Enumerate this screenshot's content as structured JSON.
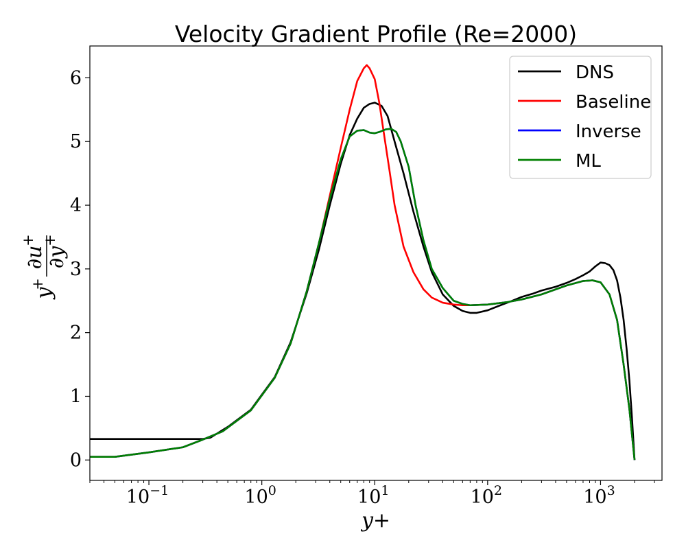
{
  "chart_data": {
    "type": "line",
    "title": "Velocity Gradient Profile (Re=2000)",
    "xlabel": "y+",
    "ylabel": {
      "prefix": "y",
      "prefix_sup": "+",
      "numerator": "∂u",
      "numerator_sup": "+",
      "denominator": "∂y",
      "denominator_sup": "+"
    },
    "xscale": "log",
    "xlim": [
      0.03,
      3500
    ],
    "ylim": [
      -0.32,
      6.5
    ],
    "xticks": [
      {
        "value": 0.1,
        "base": "10",
        "exp": "−1"
      },
      {
        "value": 1,
        "base": "10",
        "exp": "0"
      },
      {
        "value": 10,
        "base": "10",
        "exp": "1"
      },
      {
        "value": 100,
        "base": "10",
        "exp": "2"
      },
      {
        "value": 1000,
        "base": "10",
        "exp": "3"
      }
    ],
    "yticks": [
      {
        "value": 0,
        "label": "0"
      },
      {
        "value": 1,
        "label": "1"
      },
      {
        "value": 2,
        "label": "2"
      },
      {
        "value": 3,
        "label": "3"
      },
      {
        "value": 4,
        "label": "4"
      },
      {
        "value": 5,
        "label": "5"
      },
      {
        "value": 6,
        "label": "6"
      }
    ],
    "grid": false,
    "legend_position": "top-right",
    "series": [
      {
        "name": "DNS",
        "color": "#000000",
        "x": [
          0.03,
          0.1,
          0.2,
          0.3,
          0.35,
          0.5,
          0.8,
          1.3,
          1.8,
          2.5,
          3.2,
          4.0,
          5.0,
          6.0,
          7.0,
          8.0,
          9.0,
          10.0,
          11.5,
          13,
          15,
          18,
          22,
          27,
          32,
          40,
          50,
          60,
          70,
          80,
          100,
          130,
          160,
          200,
          250,
          300,
          400,
          500,
          600,
          700,
          800,
          900,
          1000,
          1100,
          1200,
          1300,
          1400,
          1500,
          1600,
          1700,
          1800,
          1900,
          2000
        ],
        "y": [
          0.33,
          0.33,
          0.33,
          0.33,
          0.35,
          0.52,
          0.79,
          1.3,
          1.85,
          2.62,
          3.3,
          4.0,
          4.65,
          5.1,
          5.36,
          5.53,
          5.59,
          5.61,
          5.56,
          5.4,
          5.0,
          4.5,
          3.9,
          3.35,
          2.95,
          2.6,
          2.42,
          2.34,
          2.31,
          2.31,
          2.35,
          2.43,
          2.49,
          2.56,
          2.61,
          2.66,
          2.72,
          2.78,
          2.84,
          2.9,
          2.96,
          3.04,
          3.1,
          3.09,
          3.06,
          2.98,
          2.82,
          2.55,
          2.2,
          1.75,
          1.25,
          0.65,
          0.0
        ]
      },
      {
        "name": "Baseline",
        "color": "#ff0000",
        "x": [
          0.03,
          0.05,
          0.1,
          0.2,
          0.3,
          0.45,
          0.8,
          1.3,
          1.8,
          2.5,
          3.2,
          4.0,
          5.0,
          6.0,
          7.0,
          8.0,
          8.5,
          9.0,
          10.0,
          11.0,
          12.0,
          13.5,
          15,
          18,
          22,
          27,
          32,
          40,
          50,
          60,
          70,
          100,
          150,
          200,
          300,
          500,
          700,
          850,
          1000,
          1200,
          1400,
          1600,
          1800,
          2000
        ],
        "y": [
          0.05,
          0.05,
          0.12,
          0.2,
          0.32,
          0.45,
          0.78,
          1.29,
          1.83,
          2.65,
          3.4,
          4.15,
          4.9,
          5.5,
          5.95,
          6.15,
          6.2,
          6.15,
          5.98,
          5.6,
          5.15,
          4.55,
          4.0,
          3.35,
          2.95,
          2.68,
          2.55,
          2.47,
          2.44,
          2.43,
          2.43,
          2.44,
          2.48,
          2.52,
          2.6,
          2.74,
          2.81,
          2.82,
          2.79,
          2.6,
          2.2,
          1.5,
          0.8,
          0.0
        ]
      },
      {
        "name": "Inverse",
        "color": "#0000ff",
        "x": [
          0.03,
          0.05,
          0.1,
          0.2,
          0.3,
          0.45,
          0.8,
          1.3,
          1.8,
          2.5,
          3.2,
          4.0,
          5.0,
          6.0,
          7.0,
          8.0,
          9.0,
          10.0,
          11.0,
          12.5,
          14,
          15.5,
          17,
          20,
          23,
          27,
          32,
          40,
          50,
          60,
          70,
          100,
          150,
          200,
          300,
          500,
          700,
          850,
          1000,
          1200,
          1400,
          1600,
          1800,
          2000
        ],
        "y": [
          0.05,
          0.05,
          0.12,
          0.2,
          0.32,
          0.45,
          0.78,
          1.29,
          1.83,
          2.65,
          3.4,
          4.1,
          4.72,
          5.08,
          5.17,
          5.18,
          5.14,
          5.13,
          5.15,
          5.19,
          5.2,
          5.15,
          5.0,
          4.6,
          4.0,
          3.45,
          3.0,
          2.7,
          2.5,
          2.45,
          2.43,
          2.44,
          2.48,
          2.52,
          2.6,
          2.74,
          2.81,
          2.82,
          2.79,
          2.6,
          2.2,
          1.5,
          0.8,
          0.0
        ]
      },
      {
        "name": "ML",
        "color": "#008000",
        "x": [
          0.03,
          0.05,
          0.1,
          0.2,
          0.3,
          0.45,
          0.8,
          1.3,
          1.8,
          2.5,
          3.2,
          4.0,
          5.0,
          6.0,
          7.0,
          8.0,
          9.0,
          10.0,
          11.0,
          12.5,
          14,
          15.5,
          17,
          20,
          23,
          27,
          32,
          40,
          50,
          60,
          70,
          100,
          150,
          200,
          300,
          500,
          700,
          850,
          1000,
          1200,
          1400,
          1600,
          1800,
          2000
        ],
        "y": [
          0.05,
          0.05,
          0.12,
          0.2,
          0.32,
          0.45,
          0.78,
          1.29,
          1.83,
          2.65,
          3.4,
          4.1,
          4.72,
          5.08,
          5.17,
          5.18,
          5.14,
          5.13,
          5.15,
          5.19,
          5.2,
          5.15,
          5.0,
          4.6,
          4.0,
          3.45,
          3.0,
          2.7,
          2.5,
          2.45,
          2.43,
          2.44,
          2.48,
          2.52,
          2.6,
          2.74,
          2.81,
          2.82,
          2.79,
          2.6,
          2.2,
          1.5,
          0.8,
          0.0
        ]
      }
    ]
  }
}
